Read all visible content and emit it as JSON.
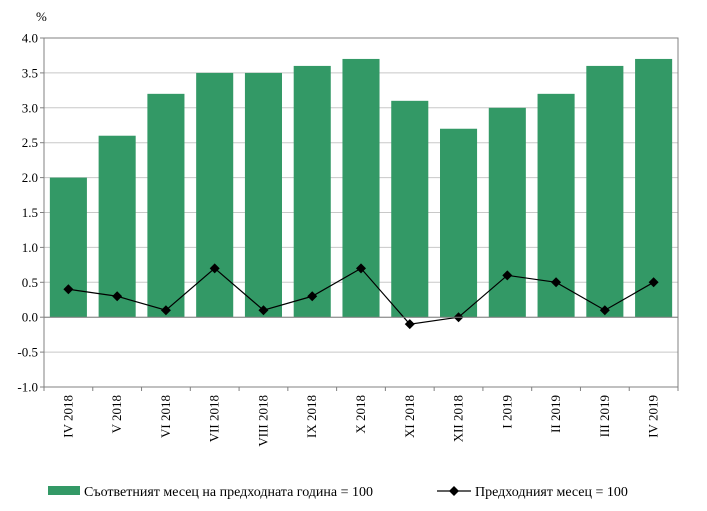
{
  "chart_data": {
    "type": "bar+line",
    "unit_label": "%",
    "categories": [
      "IV 2018",
      "V 2018",
      "VI 2018",
      "VII 2018",
      "VIII 2018",
      "IX 2018",
      "X 2018",
      "XI 2018",
      "XII 2018",
      "I 2019",
      "II 2019",
      "III 2019",
      "IV 2019"
    ],
    "ylim": [
      -1.0,
      4.0
    ],
    "yticks": [
      "4.0",
      "3.5",
      "3.0",
      "2.5",
      "2.0",
      "1.5",
      "1.0",
      "0.5",
      "0.0",
      "-0.5",
      "-1.0"
    ],
    "ytick_values": [
      4.0,
      3.5,
      3.0,
      2.5,
      2.0,
      1.5,
      1.0,
      0.5,
      0.0,
      -0.5,
      -1.0
    ],
    "grid": true,
    "legend_position": "bottom",
    "series": [
      {
        "name": "Съответният месец на предходната година = 100",
        "type": "bar",
        "color": "#339966",
        "values": [
          2.0,
          2.6,
          3.2,
          3.5,
          3.5,
          3.6,
          3.7,
          3.1,
          2.7,
          3.0,
          3.2,
          3.6,
          3.7
        ]
      },
      {
        "name": "Предходният месец = 100",
        "type": "line",
        "marker": "diamond",
        "color": "#000000",
        "values": [
          0.4,
          0.3,
          0.1,
          0.7,
          0.1,
          0.3,
          0.7,
          -0.1,
          0.0,
          0.6,
          0.5,
          0.1,
          0.5
        ]
      }
    ]
  }
}
